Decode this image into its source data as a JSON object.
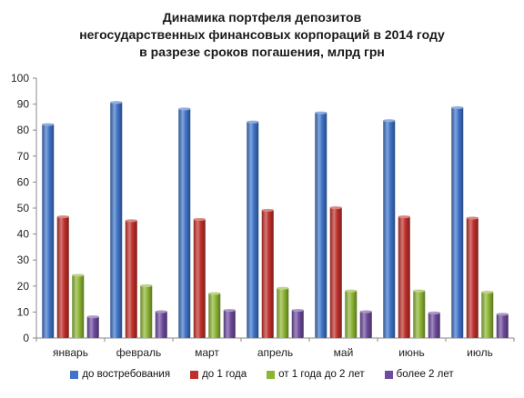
{
  "chart_data": {
    "type": "bar",
    "title_lines": [
      "Динамика портфеля депозитов",
      "негосударственных финансовых корпораций в 2014 году",
      "в разрезе сроков погашения, млрд грн"
    ],
    "categories": [
      "январь",
      "февраль",
      "март",
      "апрель",
      "май",
      "июнь",
      "июль"
    ],
    "series": [
      {
        "name": "до востребования",
        "color": "#3F74C8",
        "values": [
          82.5,
          91,
          88.5,
          83.5,
          87,
          84,
          89
        ]
      },
      {
        "name": "до 1 года",
        "color": "#C0302B",
        "values": [
          47,
          45.5,
          46,
          49.5,
          50.5,
          47,
          46.5
        ]
      },
      {
        "name": "от 1 года до 2 лет",
        "color": "#8DB534",
        "values": [
          24.5,
          20.5,
          17.5,
          19.5,
          18.5,
          18.5,
          18
        ]
      },
      {
        "name": "более 2 лет",
        "color": "#6E4B9E",
        "values": [
          8.5,
          10.5,
          11,
          11,
          10.5,
          10,
          9.5
        ]
      }
    ],
    "ylim": [
      0,
      100
    ],
    "yticks": [
      0,
      10,
      20,
      30,
      40,
      50,
      60,
      70,
      80,
      90,
      100
    ],
    "grid": false,
    "legend_position": "bottom"
  }
}
